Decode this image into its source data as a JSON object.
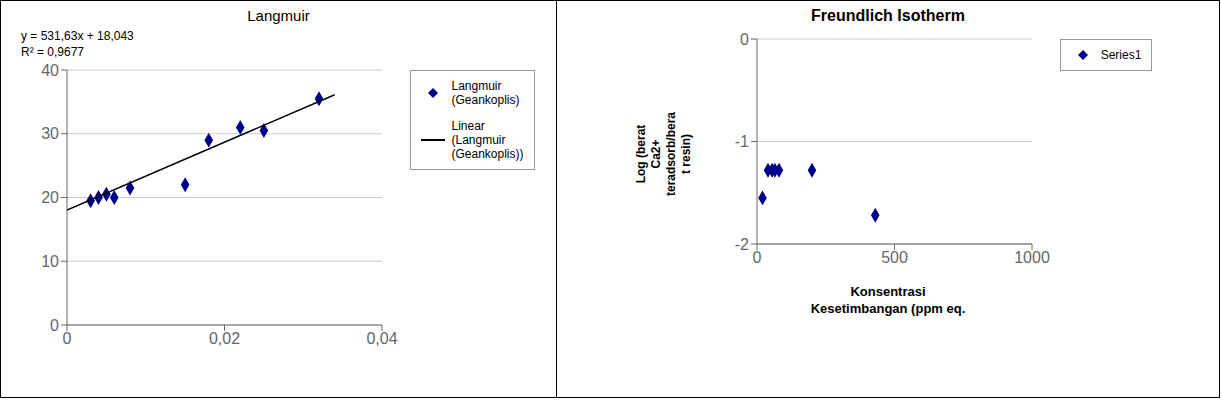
{
  "chart_data": [
    {
      "type": "scatter",
      "title": "Langmuir",
      "annotations": [
        "y = 531,63x + 18,043",
        "R² = 0,9677"
      ],
      "series": [
        {
          "name": "Langmuir\n(Geankoplis)",
          "type": "scatter",
          "color": "#00008B",
          "marker": "diamond",
          "x": [
            0.003,
            0.004,
            0.005,
            0.006,
            0.008,
            0.015,
            0.018,
            0.022,
            0.025,
            0.032
          ],
          "values": [
            19.5,
            20.0,
            20.5,
            20.0,
            21.5,
            22.0,
            29.0,
            31.0,
            30.5,
            35.5
          ]
        },
        {
          "name": "Linear\n(Langmuir\n(Geankoplis))",
          "type": "line",
          "color": "#000000",
          "line_style": "solid",
          "x": [
            0.0,
            0.034
          ],
          "values": [
            18.043,
            36.11842
          ]
        }
      ],
      "xlim": [
        0,
        0.04
      ],
      "ylim": [
        0,
        40
      ],
      "xticks": [
        0,
        {
          "value": 0.02,
          "label": "0,02"
        },
        {
          "value": 0.04,
          "label": "0,04"
        }
      ],
      "yticks": [
        0,
        10,
        20,
        30,
        40
      ],
      "grid": "y",
      "legend": "right"
    },
    {
      "type": "scatter",
      "title": "Freundlich Isotherm",
      "x_label": "Konsentrasi\nKesetimbangan (ppm eq.",
      "y_label": "Log (berat\nCa2+\nteradsorb/bera\nt resin)",
      "series": [
        {
          "name": "Series1",
          "type": "scatter",
          "color": "#00008B",
          "marker": "diamond",
          "x": [
            20,
            40,
            55,
            65,
            80,
            200,
            430
          ],
          "values": [
            -1.55,
            -1.28,
            -1.28,
            -1.28,
            -1.28,
            -1.28,
            -1.72
          ]
        }
      ],
      "xlim": [
        0,
        1000
      ],
      "ylim": [
        -2,
        0
      ],
      "xticks": [
        0,
        500,
        1000
      ],
      "yticks": [
        0,
        -1,
        -2
      ],
      "grid": "y",
      "legend": "right"
    }
  ]
}
